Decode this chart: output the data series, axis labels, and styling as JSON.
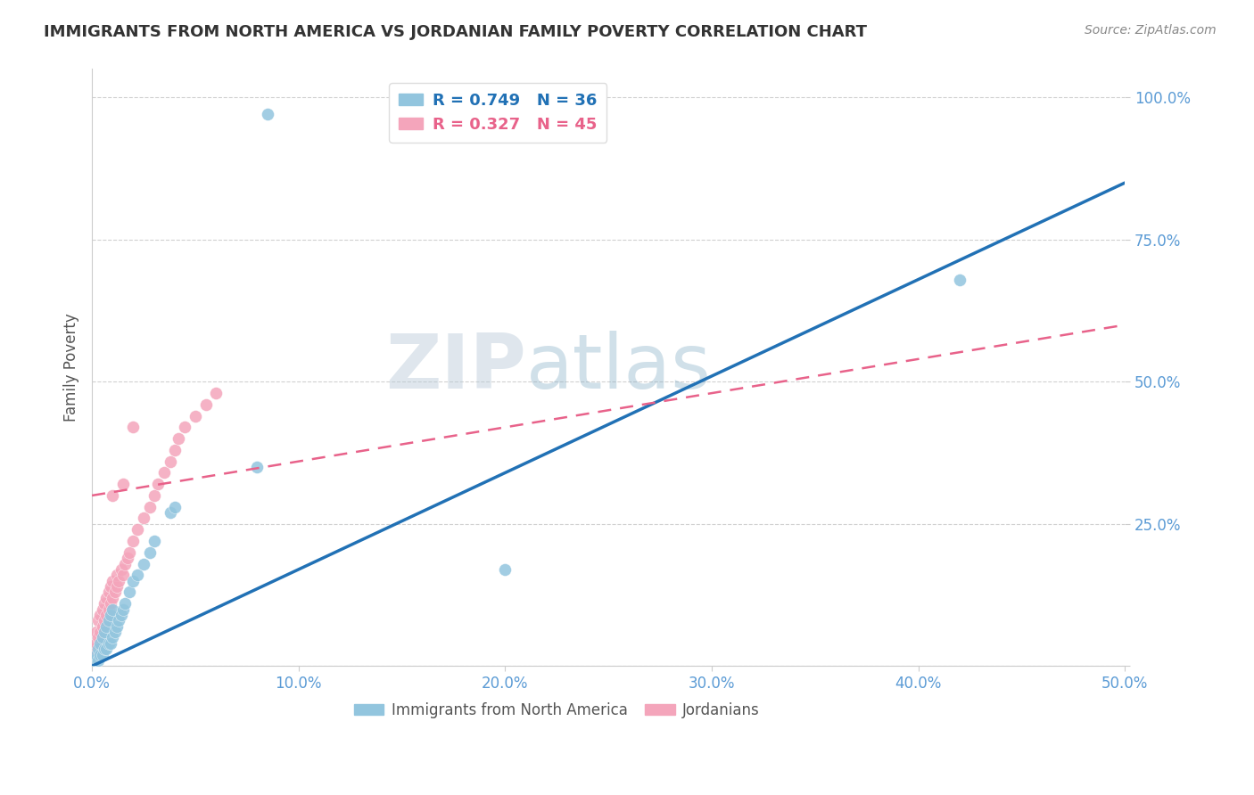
{
  "title": "IMMIGRANTS FROM NORTH AMERICA VS JORDANIAN FAMILY POVERTY CORRELATION CHART",
  "source": "Source: ZipAtlas.com",
  "ylabel": "Family Poverty",
  "xlim": [
    0.0,
    0.5
  ],
  "ylim": [
    0.0,
    1.05
  ],
  "xticks": [
    0.0,
    0.1,
    0.2,
    0.3,
    0.4,
    0.5
  ],
  "xticklabels": [
    "0.0%",
    "10.0%",
    "20.0%",
    "30.0%",
    "40.0%",
    "50.0%"
  ],
  "yticks": [
    0.0,
    0.25,
    0.5,
    0.75,
    1.0
  ],
  "yticklabels": [
    "",
    "25.0%",
    "50.0%",
    "75.0%",
    "100.0%"
  ],
  "legend_r1": "R = 0.749   N = 36",
  "legend_r2": "R = 0.327   N = 45",
  "blue_color": "#92C5DE",
  "pink_color": "#F4A5BB",
  "blue_line_color": "#2171B5",
  "pink_line_color": "#E8628A",
  "grid_color": "#CCCCCC",
  "title_color": "#333333",
  "axis_color": "#5B9BD5",
  "watermark_zip": "ZIP",
  "watermark_atlas": "atlas",
  "blue_scatter_x": [
    0.001,
    0.002,
    0.003,
    0.003,
    0.004,
    0.004,
    0.005,
    0.005,
    0.006,
    0.006,
    0.007,
    0.007,
    0.008,
    0.008,
    0.009,
    0.009,
    0.01,
    0.01,
    0.011,
    0.012,
    0.013,
    0.014,
    0.015,
    0.016,
    0.018,
    0.02,
    0.022,
    0.025,
    0.028,
    0.03,
    0.038,
    0.04,
    0.08,
    0.2,
    0.42,
    0.085
  ],
  "blue_scatter_y": [
    0.01,
    0.02,
    0.01,
    0.03,
    0.02,
    0.04,
    0.02,
    0.05,
    0.03,
    0.06,
    0.03,
    0.07,
    0.04,
    0.08,
    0.04,
    0.09,
    0.05,
    0.1,
    0.06,
    0.07,
    0.08,
    0.09,
    0.1,
    0.11,
    0.13,
    0.15,
    0.16,
    0.18,
    0.2,
    0.22,
    0.27,
    0.28,
    0.35,
    0.17,
    0.68,
    0.97
  ],
  "pink_scatter_x": [
    0.001,
    0.002,
    0.002,
    0.003,
    0.003,
    0.004,
    0.004,
    0.005,
    0.005,
    0.006,
    0.006,
    0.007,
    0.007,
    0.008,
    0.008,
    0.009,
    0.009,
    0.01,
    0.01,
    0.011,
    0.012,
    0.012,
    0.013,
    0.014,
    0.015,
    0.016,
    0.017,
    0.018,
    0.02,
    0.022,
    0.025,
    0.028,
    0.03,
    0.032,
    0.035,
    0.038,
    0.04,
    0.042,
    0.045,
    0.05,
    0.055,
    0.06,
    0.02,
    0.01,
    0.015
  ],
  "pink_scatter_y": [
    0.03,
    0.04,
    0.06,
    0.05,
    0.08,
    0.06,
    0.09,
    0.07,
    0.1,
    0.08,
    0.11,
    0.09,
    0.12,
    0.1,
    0.13,
    0.11,
    0.14,
    0.12,
    0.15,
    0.13,
    0.14,
    0.16,
    0.15,
    0.17,
    0.16,
    0.18,
    0.19,
    0.2,
    0.22,
    0.24,
    0.26,
    0.28,
    0.3,
    0.32,
    0.34,
    0.36,
    0.38,
    0.4,
    0.42,
    0.44,
    0.46,
    0.48,
    0.42,
    0.3,
    0.32
  ],
  "blue_trend_x": [
    0.0,
    0.5
  ],
  "blue_trend_y": [
    0.0,
    0.85
  ],
  "pink_trend_x": [
    0.0,
    0.5
  ],
  "pink_trend_y": [
    0.3,
    0.6
  ]
}
